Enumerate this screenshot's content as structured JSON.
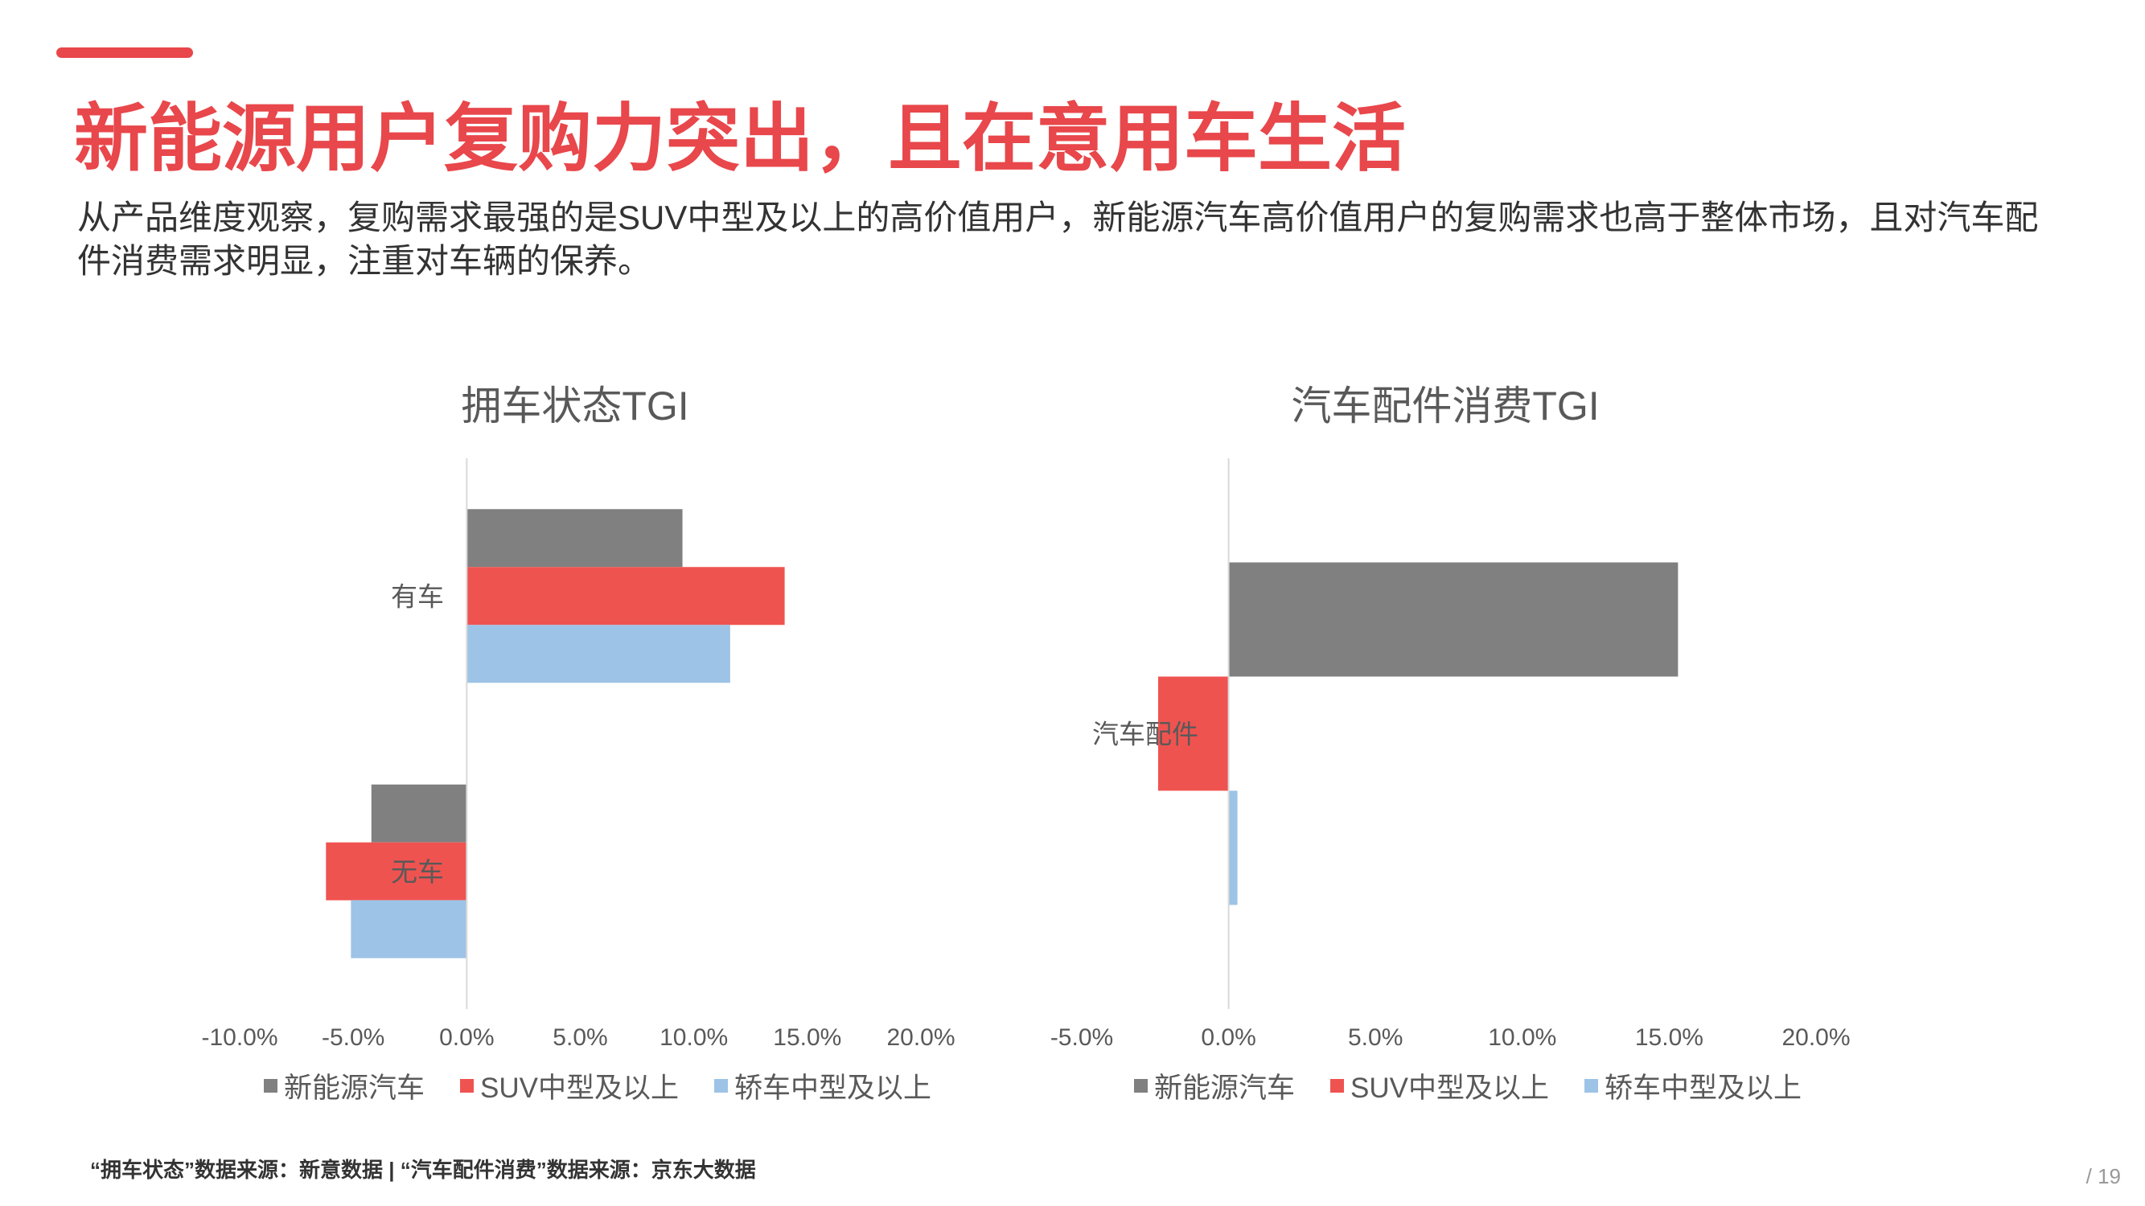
{
  "title": "新能源用户复购力突出，且在意用车生活",
  "subtitle": "从产品维度观察，复购需求最强的是SUV中型及以上的高价值用户，新能源汽车高价值用户的复购需求也高于整体市场，且对汽车配件消费需求明显，注重对车辆的保养。",
  "colors": {
    "accent": "#E8474B",
    "series": [
      "#808080",
      "#EF5350",
      "#9DC3E6"
    ]
  },
  "chart_data": [
    {
      "type": "bar",
      "orientation": "horizontal",
      "title": "拥车状态TGI",
      "categories": [
        "有车",
        "无车"
      ],
      "series": [
        {
          "name": "新能源汽车",
          "values": [
            9.5,
            -4.2
          ]
        },
        {
          "name": "SUV中型及以上",
          "values": [
            14.0,
            -6.2
          ]
        },
        {
          "name": "轿车中型及以上",
          "values": [
            11.6,
            -5.1
          ]
        }
      ],
      "xlim": [
        -10,
        20
      ],
      "ticks": [
        "-10.0%",
        "-5.0%",
        "0.0%",
        "5.0%",
        "10.0%",
        "15.0%",
        "20.0%"
      ],
      "legend": "bottom",
      "grid": false
    },
    {
      "type": "bar",
      "orientation": "horizontal",
      "title": "汽车配件消费TGI",
      "categories": [
        "汽车配件"
      ],
      "series": [
        {
          "name": "新能源汽车",
          "values": [
            15.3
          ]
        },
        {
          "name": "SUV中型及以上",
          "values": [
            -2.4
          ]
        },
        {
          "name": "轿车中型及以上",
          "values": [
            0.3
          ]
        }
      ],
      "xlim": [
        -5,
        20
      ],
      "ticks": [
        "-5.0%",
        "0.0%",
        "5.0%",
        "10.0%",
        "15.0%",
        "20.0%"
      ],
      "legend": "bottom",
      "grid": false
    }
  ],
  "footer": "“拥车状态”数据来源：新意数据  |  “汽车配件消费”数据来源：京东大数据",
  "page_number": "/ 19"
}
